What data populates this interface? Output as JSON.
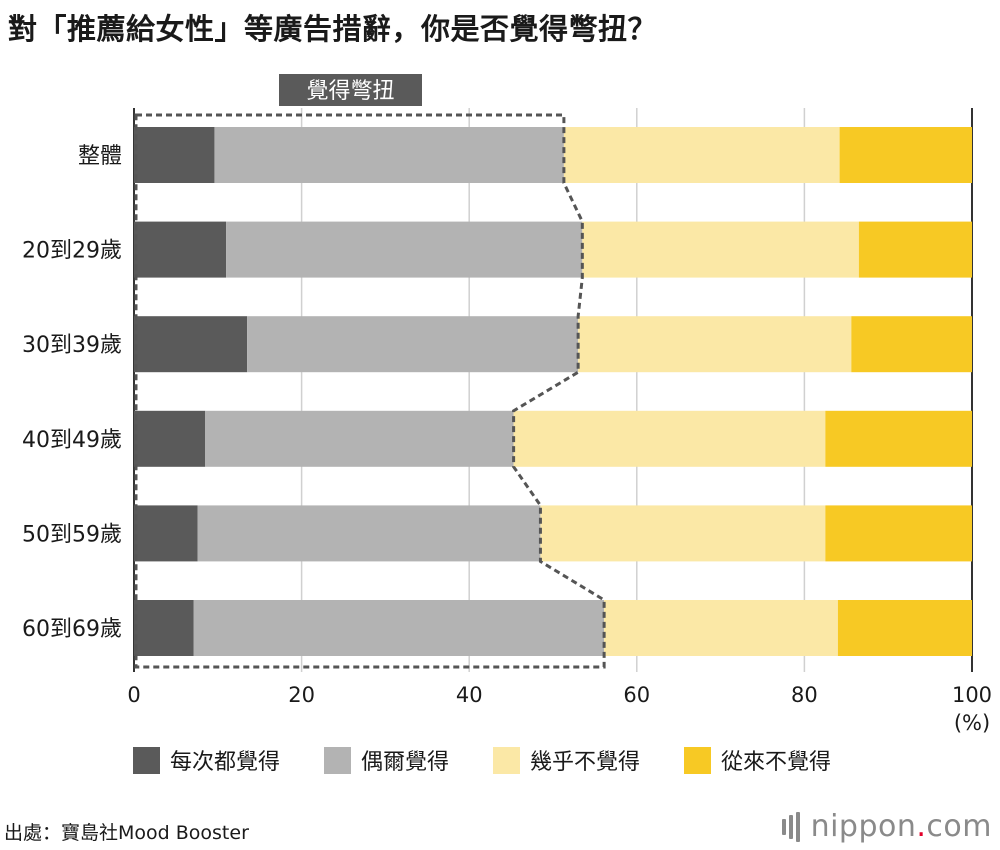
{
  "title": "對「推薦給女性」等廣告措辭，你是否覺得彆扭？",
  "chart_data": {
    "type": "bar",
    "orientation": "horizontal",
    "stacked": true,
    "categories": [
      "整體",
      "20到29歲",
      "30到39歲",
      "40到49歲",
      "50到59歲",
      "60到69歲"
    ],
    "series": [
      {
        "name": "每次都覺得",
        "color": "#5a5a5a",
        "values": [
          9.6,
          11.0,
          13.5,
          8.5,
          7.6,
          7.1
        ]
      },
      {
        "name": "偶爾覺得",
        "color": "#b3b3b3",
        "values": [
          41.7,
          42.5,
          39.5,
          36.8,
          40.9,
          49.0
        ]
      },
      {
        "name": "幾乎不覺得",
        "color": "#fbe8a6",
        "values": [
          32.9,
          33.0,
          32.6,
          37.2,
          34.0,
          27.9
        ]
      },
      {
        "name": "從來不覺得",
        "color": "#f7c924",
        "values": [
          15.8,
          13.5,
          14.4,
          17.5,
          17.5,
          16.0
        ]
      }
    ],
    "xlim": [
      0,
      100
    ],
    "xticks": [
      "0",
      "20",
      "40",
      "60",
      "80",
      "100"
    ],
    "xunit": "(%)",
    "grid": true,
    "annotation": "覺得彆扭",
    "legend_position": "bottom"
  },
  "source": "出處：寶島社Mood Booster",
  "logo": {
    "text": "nippon",
    "dot": ".",
    "suffix": "com"
  }
}
